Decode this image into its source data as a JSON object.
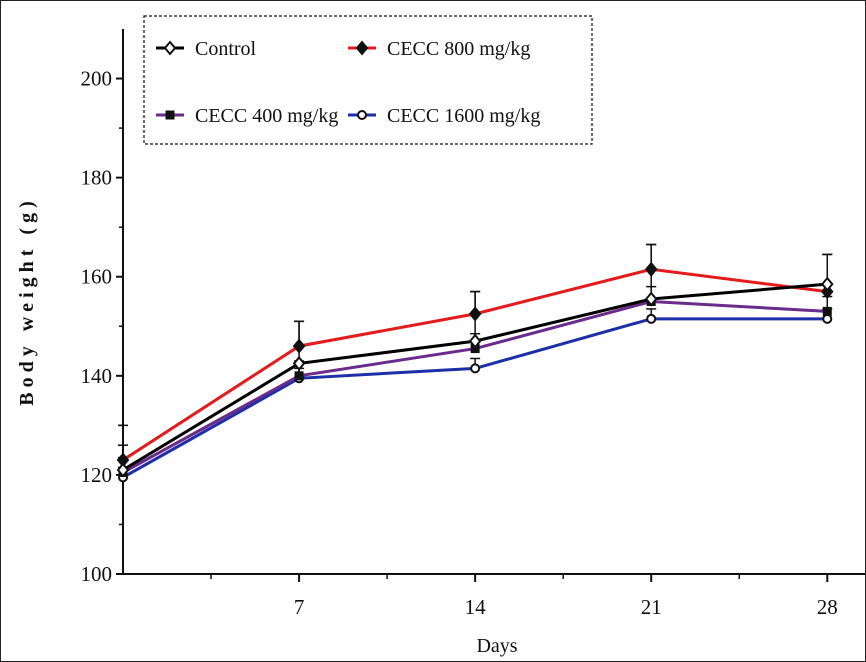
{
  "chart_data": {
    "type": "line",
    "xlabel": "Days",
    "ylabel": "Body weight (g)",
    "x": [
      0,
      7,
      14,
      21,
      28
    ],
    "x_ticks": [
      7,
      14,
      21,
      28
    ],
    "x_tick_labels": [
      "7",
      "14",
      "21",
      "28"
    ],
    "xlim": [
      0,
      29.5
    ],
    "ylim": [
      100,
      210
    ],
    "y_ticks": [
      100,
      120,
      140,
      160,
      180,
      200
    ],
    "y_tick_labels": [
      "100",
      "120",
      "140",
      "160",
      "180",
      "200"
    ],
    "grid": false,
    "legend_position": "top-left",
    "series": [
      {
        "name": "Control",
        "color": "#000000",
        "marker": "diamond-open",
        "values": [
          121,
          142.5,
          147,
          155.5,
          158.5
        ],
        "errors": [
          5,
          8.5,
          10,
          11,
          6
        ]
      },
      {
        "name": "CECC 800 mg/kg",
        "color": "#e41a1c",
        "marker": "diamond-filled",
        "values": [
          123,
          146,
          152.5,
          161.5,
          157
        ],
        "errors": [
          7,
          5,
          4.5,
          5,
          7.5
        ]
      },
      {
        "name": "CECC 400 mg/kg",
        "color": "#6a2c8c",
        "marker": "square-filled",
        "values": [
          120.5,
          140,
          145.5,
          155,
          153
        ],
        "errors": [
          3,
          3,
          3,
          3,
          3
        ]
      },
      {
        "name": "CECC 1600 mg/kg",
        "color": "#1c2fa8",
        "marker": "circle-open",
        "values": [
          119.5,
          139.5,
          141.5,
          151.5,
          151.5
        ],
        "errors": [
          2,
          2,
          2,
          2,
          2
        ]
      }
    ]
  }
}
